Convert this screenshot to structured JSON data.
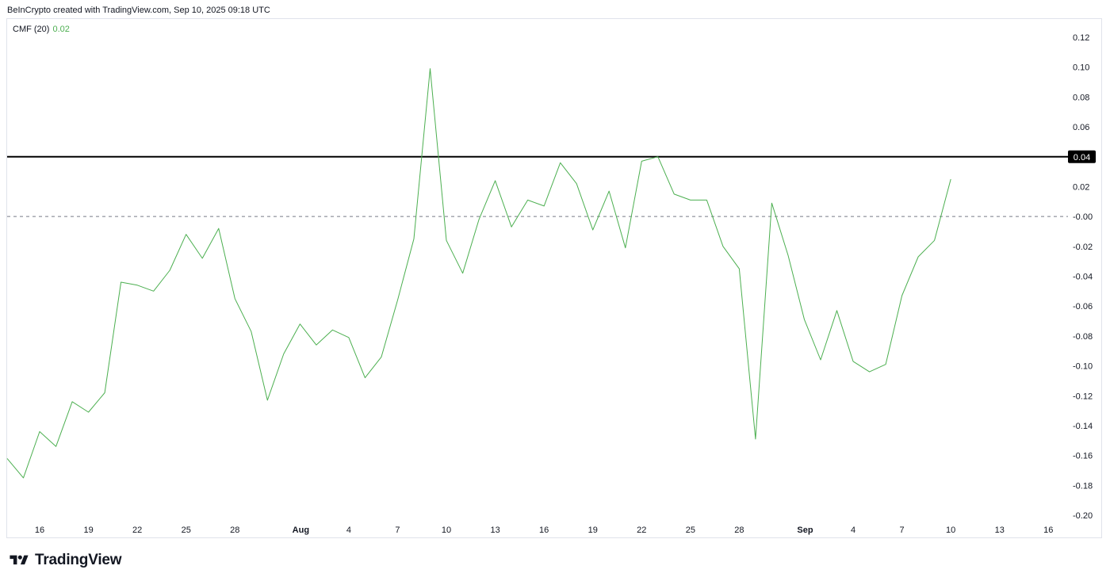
{
  "header": {
    "attribution": "BeInCrypto created with TradingView.com, Sep 10, 2025 09:18 UTC"
  },
  "legend": {
    "indicator": "CMF (20)",
    "value": "0.02"
  },
  "footer": {
    "brand": "TradingView"
  },
  "colors": {
    "line": "#4caf50",
    "level": "#000000",
    "zero": "#787b86",
    "legend_value": "#4caf50"
  },
  "chart_data": {
    "type": "line",
    "title": "",
    "xlabel": "",
    "ylabel": "",
    "ylim": [
      -0.2,
      0.12
    ],
    "grid": false,
    "x_tick_labels": [
      "16",
      "19",
      "22",
      "25",
      "28",
      "Aug",
      "4",
      "7",
      "10",
      "13",
      "16",
      "19",
      "22",
      "25",
      "28",
      "Sep",
      "4",
      "7",
      "10",
      "13",
      "16"
    ],
    "y_tick_labels": [
      "0.12",
      "0.10",
      "0.08",
      "0.06",
      "0.04",
      "0.02",
      "-0.00",
      "-0.02",
      "-0.04",
      "-0.06",
      "-0.08",
      "-0.10",
      "-0.12",
      "-0.14",
      "-0.16",
      "-0.18",
      "-0.20"
    ],
    "horizontal_level": {
      "value": 0.04,
      "label": "0.04"
    },
    "zero_line": 0,
    "series": [
      {
        "x": [
          "Jul 14",
          "Jul 15",
          "Jul 16",
          "Jul 17",
          "Jul 18",
          "Jul 19",
          "Jul 20",
          "Jul 21",
          "Jul 22",
          "Jul 23",
          "Jul 24",
          "Jul 25",
          "Jul 26",
          "Jul 27",
          "Jul 28",
          "Jul 29",
          "Jul 30",
          "Jul 31",
          "Aug 1",
          "Aug 2",
          "Aug 3",
          "Aug 4",
          "Aug 5",
          "Aug 6",
          "Aug 7",
          "Aug 8",
          "Aug 9",
          "Aug 10",
          "Aug 11",
          "Aug 12",
          "Aug 13",
          "Aug 14",
          "Aug 15",
          "Aug 16",
          "Aug 17",
          "Aug 18",
          "Aug 19",
          "Aug 20",
          "Aug 21",
          "Aug 22",
          "Aug 23",
          "Aug 24",
          "Aug 25",
          "Aug 26",
          "Aug 27",
          "Aug 28",
          "Aug 29",
          "Aug 30",
          "Aug 31",
          "Sep 1",
          "Sep 2",
          "Sep 3",
          "Sep 4",
          "Sep 5",
          "Sep 6",
          "Sep 7",
          "Sep 8",
          "Sep 9",
          "Sep 10"
        ],
        "values": [
          -0.162,
          -0.175,
          -0.144,
          -0.154,
          -0.124,
          -0.131,
          -0.118,
          -0.044,
          -0.046,
          -0.05,
          -0.036,
          -0.012,
          -0.028,
          -0.008,
          -0.055,
          -0.077,
          -0.123,
          -0.092,
          -0.072,
          -0.086,
          -0.076,
          -0.081,
          -0.108,
          -0.094,
          -0.056,
          -0.015,
          0.099,
          -0.016,
          -0.038,
          -0.002,
          0.024,
          -0.007,
          0.011,
          0.007,
          0.036,
          0.022,
          -0.009,
          0.017,
          -0.021,
          0.037,
          0.04,
          0.015,
          0.011,
          0.011,
          -0.02,
          -0.035,
          -0.149,
          0.009,
          -0.026,
          -0.069,
          -0.096,
          -0.063,
          -0.097,
          -0.104,
          -0.099,
          -0.053,
          -0.027,
          -0.016,
          0.025
        ]
      }
    ]
  }
}
